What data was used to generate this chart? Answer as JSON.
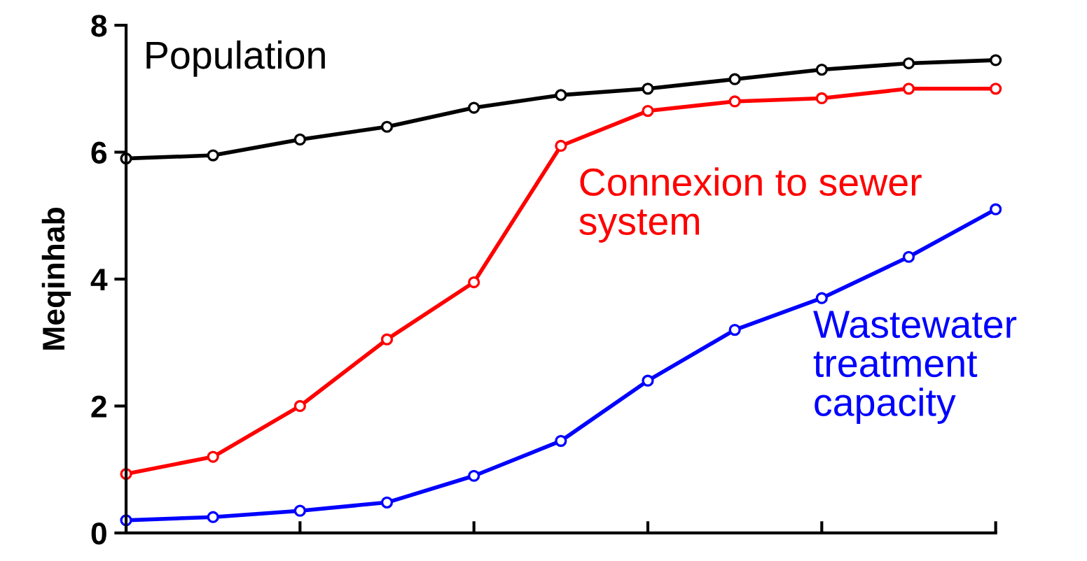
{
  "chart_data": {
    "type": "line",
    "ylabel": "Meqinhab",
    "categories": [
      null,
      null,
      null,
      null,
      null,
      null,
      null,
      null,
      null,
      null,
      null
    ],
    "ylim": [
      0,
      8
    ],
    "yticks": [
      0,
      2,
      4,
      6,
      8
    ],
    "grid": false,
    "legend": false,
    "marker": "circle",
    "line_style": "solid",
    "series": [
      {
        "name": "Population",
        "color": "#000000",
        "values": [
          5.9,
          5.95,
          6.2,
          6.4,
          6.7,
          6.9,
          7.0,
          7.15,
          7.3,
          7.4,
          7.45
        ]
      },
      {
        "name": "Connexion to sewer\nsystem",
        "color": "#ff0000",
        "values": [
          0.93,
          1.2,
          2.0,
          3.05,
          3.95,
          6.1,
          6.65,
          6.8,
          6.85,
          7.0,
          7.0
        ]
      },
      {
        "name": "Wastewater\ntreatment\ncapacity",
        "color": "#0000ff",
        "values": [
          0.2,
          0.25,
          0.35,
          0.48,
          0.9,
          1.45,
          2.4,
          3.2,
          3.7,
          4.35,
          5.1
        ]
      }
    ]
  }
}
